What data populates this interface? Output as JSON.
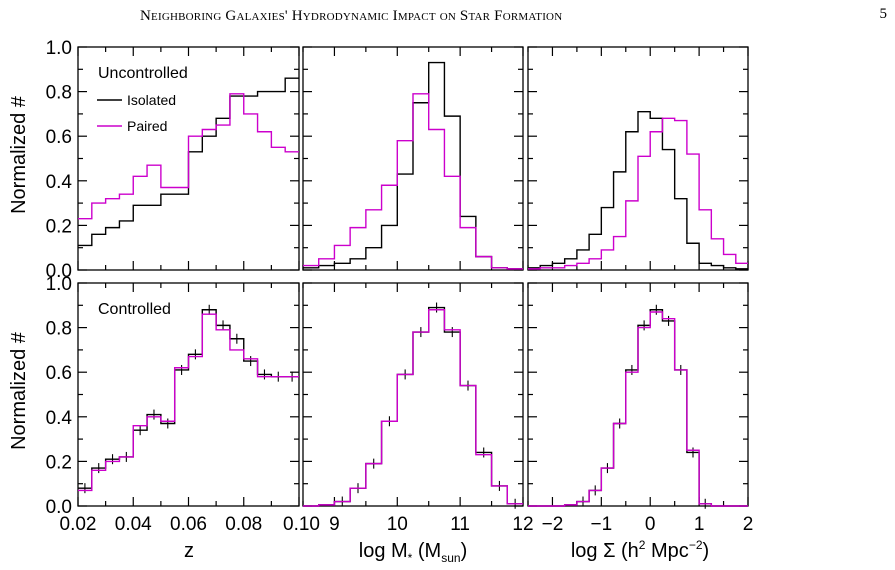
{
  "header": {
    "running_head": "Neighboring Galaxies' Hydrodynamic Impact on Star Formation",
    "page_number": "5"
  },
  "colors": {
    "isolated": "#000000",
    "paired": "#cc00cc"
  },
  "chart_data": [
    {
      "type": "line",
      "panel": "uncontrolled-z",
      "title": "",
      "xlabel": "",
      "ylabel": "Normalized #",
      "annotation": "Uncontrolled",
      "legend": {
        "entries": [
          "Isolated",
          "Paired"
        ],
        "placement": "top-left"
      },
      "xlim": [
        0.02,
        0.1
      ],
      "ylim": [
        0,
        1.0
      ],
      "yticks": [
        "0.0",
        "0.2",
        "0.4",
        "0.6",
        "0.8",
        "1.0"
      ],
      "bin_edges": [
        0.02,
        0.025,
        0.03,
        0.035,
        0.04,
        0.045,
        0.05,
        0.055,
        0.06,
        0.065,
        0.07,
        0.075,
        0.08,
        0.085,
        0.09,
        0.095,
        0.1
      ],
      "series": [
        {
          "name": "Isolated",
          "values": [
            0.11,
            0.16,
            0.19,
            0.22,
            0.29,
            0.29,
            0.34,
            0.34,
            0.53,
            0.6,
            0.68,
            0.78,
            0.78,
            0.8,
            0.8,
            0.86
          ]
        },
        {
          "name": "Paired",
          "values": [
            0.23,
            0.3,
            0.32,
            0.34,
            0.42,
            0.47,
            0.37,
            0.37,
            0.6,
            0.63,
            0.65,
            0.79,
            0.7,
            0.62,
            0.55,
            0.53
          ]
        }
      ]
    },
    {
      "type": "line",
      "panel": "uncontrolled-mass",
      "title": "",
      "xlabel": "",
      "ylabel": "",
      "xlim": [
        8.5,
        12
      ],
      "ylim": [
        0,
        1.0
      ],
      "bin_edges": [
        8.5,
        8.75,
        9.0,
        9.25,
        9.5,
        9.75,
        10.0,
        10.25,
        10.5,
        10.75,
        11.0,
        11.25,
        11.5,
        11.75,
        12.0
      ],
      "series": [
        {
          "name": "Isolated",
          "values": [
            0.01,
            0.02,
            0.03,
            0.05,
            0.1,
            0.2,
            0.43,
            0.75,
            0.93,
            0.69,
            0.24,
            0.06,
            0.01,
            0.005
          ]
        },
        {
          "name": "Paired",
          "values": [
            0.02,
            0.05,
            0.11,
            0.19,
            0.27,
            0.38,
            0.58,
            0.79,
            0.63,
            0.42,
            0.19,
            0.06,
            0.01,
            0.005
          ]
        }
      ]
    },
    {
      "type": "line",
      "panel": "uncontrolled-density",
      "title": "",
      "xlabel": "",
      "ylabel": "",
      "xlim": [
        -2.5,
        2
      ],
      "ylim": [
        0,
        1.0
      ],
      "bin_edges": [
        -2.5,
        -2.25,
        -2.0,
        -1.75,
        -1.5,
        -1.25,
        -1.0,
        -0.75,
        -0.5,
        -0.25,
        0.0,
        0.25,
        0.5,
        0.75,
        1.0,
        1.25,
        1.5,
        1.75,
        2.0
      ],
      "series": [
        {
          "name": "Isolated",
          "values": [
            0.01,
            0.02,
            0.03,
            0.05,
            0.09,
            0.16,
            0.28,
            0.44,
            0.62,
            0.71,
            0.68,
            0.54,
            0.32,
            0.12,
            0.03,
            0.02,
            0.01,
            0.005
          ]
        },
        {
          "name": "Paired",
          "values": [
            0.005,
            0.01,
            0.01,
            0.02,
            0.03,
            0.05,
            0.09,
            0.15,
            0.31,
            0.51,
            0.62,
            0.68,
            0.67,
            0.52,
            0.27,
            0.14,
            0.07,
            0.03
          ]
        }
      ]
    },
    {
      "type": "line",
      "panel": "controlled-z",
      "title": "",
      "xlabel": "z",
      "ylabel": "Normalized #",
      "annotation": "Controlled",
      "xlim": [
        0.02,
        0.1
      ],
      "ylim": [
        0,
        1.0
      ],
      "xticks": [
        "0.02",
        "0.04",
        "0.06",
        "0.08",
        "0.10"
      ],
      "yticks": [
        "0.0",
        "0.2",
        "0.4",
        "0.6",
        "0.8",
        "1.0"
      ],
      "bin_edges": [
        0.02,
        0.025,
        0.03,
        0.035,
        0.04,
        0.045,
        0.05,
        0.055,
        0.06,
        0.065,
        0.07,
        0.075,
        0.08,
        0.085,
        0.09,
        0.095,
        0.1
      ],
      "series": [
        {
          "name": "Isolated",
          "values": [
            0.08,
            0.17,
            0.21,
            0.22,
            0.34,
            0.41,
            0.37,
            0.61,
            0.68,
            0.88,
            0.81,
            0.75,
            0.65,
            0.59,
            0.58,
            0.58
          ]
        },
        {
          "name": "Paired",
          "values": [
            0.07,
            0.16,
            0.2,
            0.22,
            0.36,
            0.4,
            0.38,
            0.62,
            0.67,
            0.86,
            0.79,
            0.7,
            0.66,
            0.58,
            0.58,
            0.58
          ]
        }
      ]
    },
    {
      "type": "line",
      "panel": "controlled-mass",
      "title": "",
      "xlabel": "log M* (Msun)",
      "ylabel": "",
      "xlim": [
        8.5,
        12
      ],
      "ylim": [
        0,
        1.0
      ],
      "xticks": [
        "9",
        "10",
        "11",
        "12"
      ],
      "bin_edges": [
        8.5,
        8.75,
        9.0,
        9.25,
        9.5,
        9.75,
        10.0,
        10.25,
        10.5,
        10.75,
        11.0,
        11.25,
        11.5,
        11.75,
        12.0
      ],
      "series": [
        {
          "name": "Isolated",
          "values": [
            0.0,
            0.005,
            0.02,
            0.08,
            0.19,
            0.38,
            0.59,
            0.78,
            0.89,
            0.78,
            0.54,
            0.24,
            0.09,
            0.01
          ]
        },
        {
          "name": "Paired",
          "values": [
            0.0,
            0.005,
            0.02,
            0.08,
            0.19,
            0.38,
            0.59,
            0.78,
            0.88,
            0.79,
            0.54,
            0.23,
            0.09,
            0.01
          ]
        }
      ]
    },
    {
      "type": "line",
      "panel": "controlled-density",
      "title": "",
      "xlabel": "log Σ (h² Mpc⁻²)",
      "ylabel": "",
      "xlim": [
        -2.5,
        2
      ],
      "ylim": [
        0,
        1.0
      ],
      "xticks": [
        "−2",
        "−1",
        "0",
        "1",
        "2"
      ],
      "bin_edges": [
        -2.5,
        -2.25,
        -2.0,
        -1.75,
        -1.5,
        -1.25,
        -1.0,
        -0.75,
        -0.5,
        -0.25,
        0.0,
        0.25,
        0.5,
        0.75,
        1.0,
        1.25,
        1.5,
        1.75,
        2.0
      ],
      "series": [
        {
          "name": "Isolated",
          "values": [
            0.0,
            0.0,
            0.0,
            0.005,
            0.02,
            0.07,
            0.17,
            0.37,
            0.61,
            0.81,
            0.88,
            0.83,
            0.61,
            0.24,
            0.01,
            0.0,
            0.0,
            0.0
          ]
        },
        {
          "name": "Paired",
          "values": [
            0.0,
            0.0,
            0.0,
            0.005,
            0.02,
            0.07,
            0.17,
            0.37,
            0.6,
            0.8,
            0.87,
            0.84,
            0.61,
            0.25,
            0.01,
            0.0,
            0.0,
            0.0
          ]
        }
      ]
    }
  ]
}
